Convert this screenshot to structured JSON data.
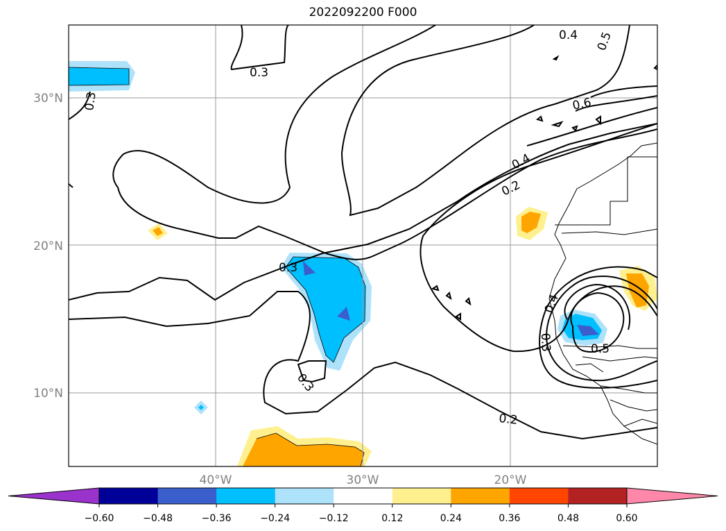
{
  "title": "2022092200 F000",
  "map": {
    "lat_labels": [
      "30°N",
      "20°N",
      "10°N"
    ],
    "lon_labels": [
      "40°W",
      "30°W",
      "20°W"
    ],
    "gridlines": true
  },
  "contour_labels": [
    "0.3",
    "0.4",
    "0.5",
    "0.6",
    "0.4",
    "0.2",
    "0.3",
    "0.3",
    "0.3",
    "0.2",
    "0.4",
    "0.3",
    "0.5"
  ],
  "colorbar": {
    "ticks": [
      "−0.60",
      "−0.48",
      "−0.36",
      "−0.24",
      "−0.12",
      "0.12",
      "0.24",
      "0.36",
      "0.48",
      "0.60"
    ],
    "colors": [
      "#9933cc",
      "#000099",
      "#3a5fcd",
      "#00bfff",
      "#aee2fa",
      "#ffffff",
      "#fff08f",
      "#ffa500",
      "#ff4500",
      "#b22222",
      "#ff88aa",
      "#ff88aa"
    ],
    "extend": "both"
  }
}
